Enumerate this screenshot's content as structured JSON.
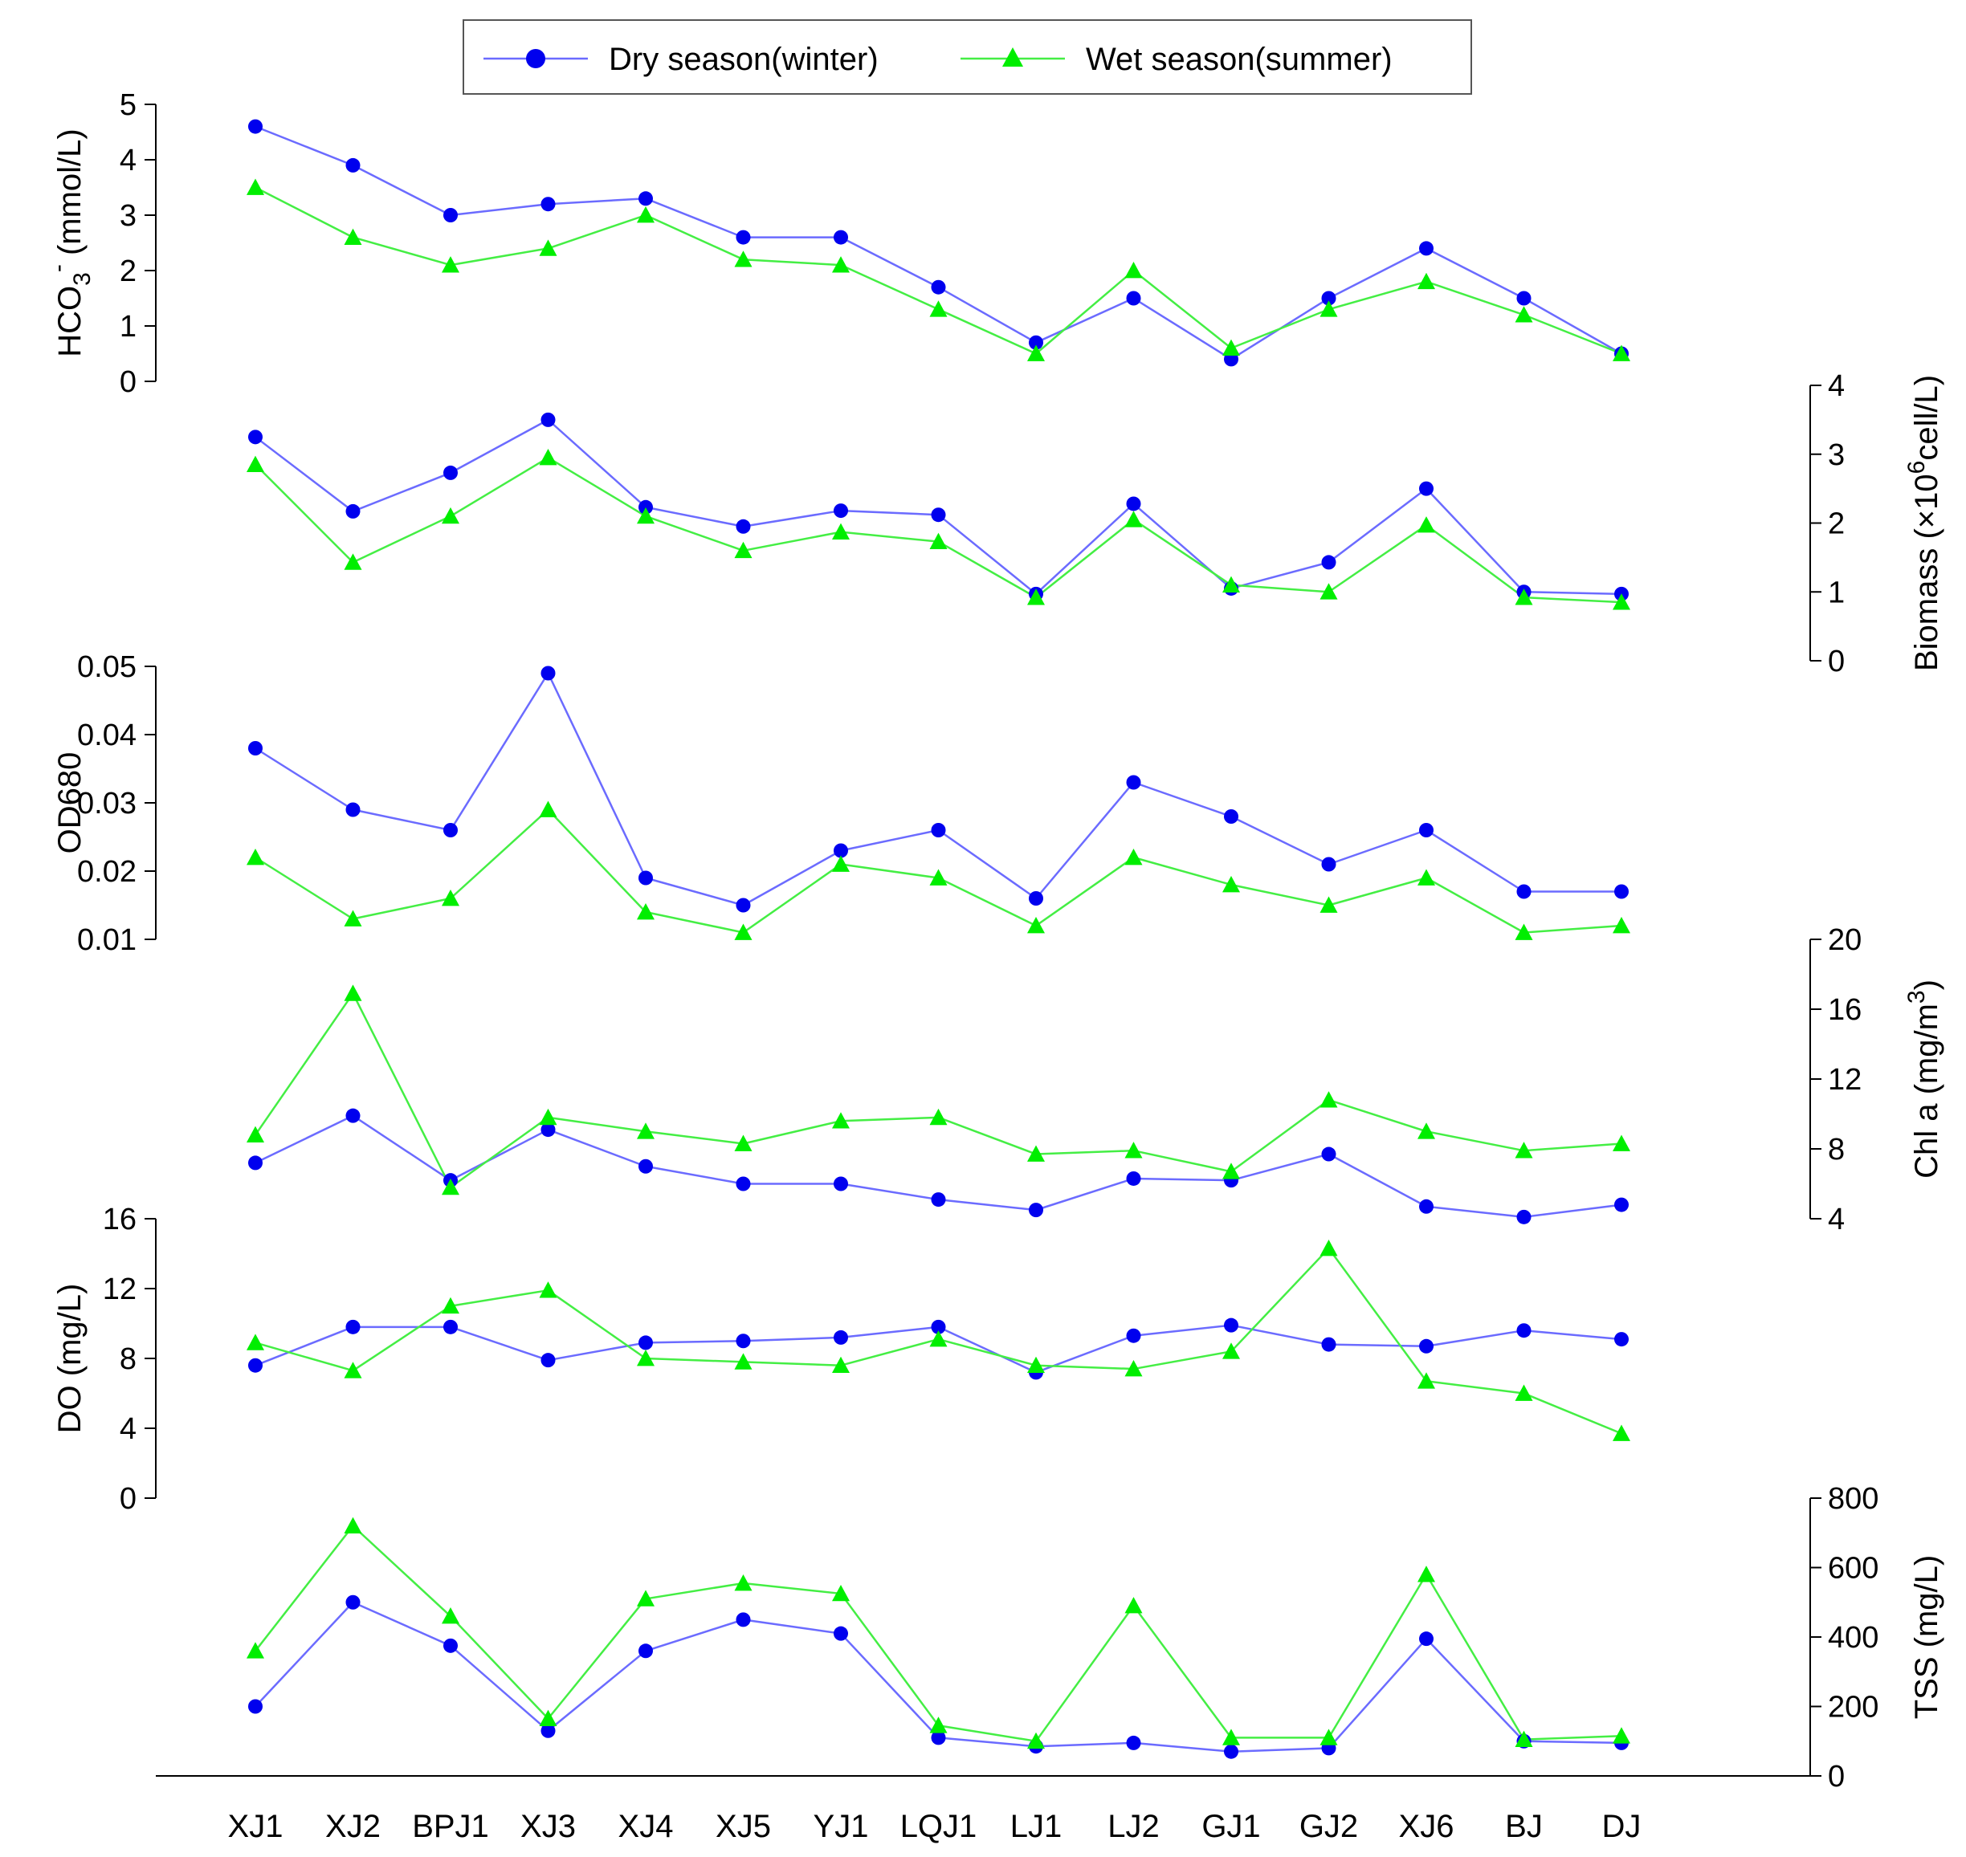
{
  "chart_data": {
    "type": "line",
    "title": "",
    "categories": [
      "XJ1",
      "XJ2",
      "BPJ1",
      "XJ3",
      "XJ4",
      "XJ5",
      "YJ1",
      "LQJ1",
      "LJ1",
      "LJ2",
      "GJ1",
      "GJ2",
      "XJ6",
      "BJ",
      "DJ"
    ],
    "legend": {
      "position": "top-center",
      "entries": [
        {
          "name": "Dry season(winter)",
          "color": "#0000ee",
          "marker": "circle"
        },
        {
          "name": "Wet season(summer)",
          "color": "#00ee00",
          "marker": "triangle"
        }
      ]
    },
    "line_colors": {
      "dry": "#6b6bff",
      "wet": "#44ee44"
    },
    "marker_colors": {
      "dry": "#0000ee",
      "wet": "#00ee00"
    },
    "panels": [
      {
        "id": "hco3",
        "ylabel": "HCO3- (mmol/L)",
        "ylabel_main": "HCO",
        "ylabel_sub": "3",
        "ylabel_sup": "-",
        "ylabel_tail": " (mmol/L)",
        "axis_side": "left",
        "ylim": [
          0,
          5
        ],
        "ticks": [
          0,
          1,
          2,
          3,
          4,
          5
        ],
        "tick_labels": [
          "0",
          "1",
          "2",
          "3",
          "4",
          "5"
        ],
        "series": [
          {
            "name": "Dry season(winter)",
            "values": [
              4.6,
              3.9,
              3.0,
              3.2,
              3.3,
              2.6,
              2.6,
              1.7,
              0.7,
              1.5,
              0.4,
              1.5,
              2.4,
              1.5,
              0.5
            ]
          },
          {
            "name": "Wet season(summer)",
            "values": [
              3.5,
              2.6,
              2.1,
              2.4,
              3.0,
              2.2,
              2.1,
              1.3,
              0.5,
              2.0,
              0.6,
              1.3,
              1.8,
              1.2,
              0.5
            ]
          }
        ]
      },
      {
        "id": "biomass",
        "ylabel": "Biomass (×10^6 cell/L)",
        "ylabel_main": "Biomass (×10",
        "ylabel_sup": "6",
        "ylabel_tail": "cell/L)",
        "axis_side": "right",
        "ylim": [
          0,
          4
        ],
        "ticks": [
          0,
          1,
          2,
          3,
          4
        ],
        "tick_labels": [
          "0",
          "1",
          "2",
          "3",
          "4"
        ],
        "series": [
          {
            "name": "Dry season(winter)",
            "values": [
              3.25,
              2.17,
              2.73,
              3.5,
              2.23,
              1.95,
              2.18,
              2.12,
              0.97,
              2.28,
              1.05,
              1.43,
              2.5,
              1.0,
              0.97
            ]
          },
          {
            "name": "Wet season(summer)",
            "values": [
              2.85,
              1.43,
              2.1,
              2.95,
              2.1,
              1.6,
              1.87,
              1.73,
              0.92,
              2.05,
              1.1,
              1.0,
              1.97,
              0.92,
              0.85
            ]
          }
        ]
      },
      {
        "id": "od680",
        "ylabel": "OD680",
        "axis_side": "left",
        "ylim": [
          0.01,
          0.05
        ],
        "ticks": [
          0.01,
          0.02,
          0.03,
          0.04,
          0.05
        ],
        "tick_labels": [
          "0.01",
          "0.02",
          "0.03",
          "0.04",
          "0.05"
        ],
        "series": [
          {
            "name": "Dry season(winter)",
            "values": [
              0.038,
              0.029,
              0.026,
              0.049,
              0.019,
              0.015,
              0.023,
              0.026,
              0.016,
              0.033,
              0.028,
              0.021,
              0.026,
              0.017,
              0.017
            ]
          },
          {
            "name": "Wet season(summer)",
            "values": [
              0.022,
              0.013,
              0.016,
              0.029,
              0.014,
              0.011,
              0.021,
              0.019,
              0.012,
              0.022,
              0.018,
              0.015,
              0.019,
              0.011,
              0.012
            ]
          }
        ]
      },
      {
        "id": "chla",
        "ylabel": "Chl a (mg/m3)",
        "ylabel_main": "Chl a (mg/m",
        "ylabel_sup": "3",
        "ylabel_tail": ")",
        "axis_side": "right",
        "ylim": [
          4,
          20
        ],
        "ticks": [
          4,
          8,
          12,
          16,
          20
        ],
        "tick_labels": [
          "4",
          "8",
          "12",
          "16",
          "20"
        ],
        "series": [
          {
            "name": "Dry season(winter)",
            "values": [
              7.2,
              9.9,
              6.2,
              9.1,
              7.0,
              6.0,
              6.0,
              5.1,
              4.5,
              6.3,
              6.2,
              7.7,
              4.7,
              4.1,
              4.8
            ]
          },
          {
            "name": "Wet season(summer)",
            "values": [
              8.8,
              16.9,
              5.8,
              9.8,
              9.0,
              8.3,
              9.6,
              9.8,
              7.7,
              7.9,
              6.7,
              10.8,
              9.0,
              7.9,
              8.3
            ]
          }
        ]
      },
      {
        "id": "do",
        "ylabel": "DO (mg/L)",
        "axis_side": "left",
        "ylim": [
          0,
          16
        ],
        "ticks": [
          0,
          4,
          8,
          12,
          16
        ],
        "tick_labels": [
          "0",
          "4",
          "8",
          "12",
          "16"
        ],
        "series": [
          {
            "name": "Dry season(winter)",
            "values": [
              7.6,
              9.8,
              9.8,
              7.9,
              8.9,
              9.0,
              9.2,
              9.8,
              7.2,
              9.3,
              9.9,
              8.8,
              8.7,
              9.6,
              9.1
            ]
          },
          {
            "name": "Wet season(summer)",
            "values": [
              8.9,
              7.3,
              11.0,
              11.9,
              8.0,
              7.8,
              7.6,
              9.1,
              7.6,
              7.4,
              8.4,
              14.3,
              6.7,
              6.0,
              3.7
            ]
          }
        ]
      },
      {
        "id": "tss",
        "ylabel": "TSS (mg/L)",
        "axis_side": "right",
        "ylim": [
          0,
          800
        ],
        "ticks": [
          0,
          200,
          400,
          600,
          800
        ],
        "tick_labels": [
          "0",
          "200",
          "400",
          "600",
          "800"
        ],
        "series": [
          {
            "name": "Dry season(winter)",
            "values": [
              200,
              500,
              375,
              130,
              360,
              450,
              410,
              110,
              85,
              95,
              70,
              80,
              395,
              100,
              95
            ]
          },
          {
            "name": "Wet season(summer)",
            "values": [
              360,
              720,
              460,
              165,
              510,
              555,
              525,
              145,
              100,
              490,
              110,
              110,
              580,
              105,
              115
            ]
          }
        ]
      }
    ]
  }
}
